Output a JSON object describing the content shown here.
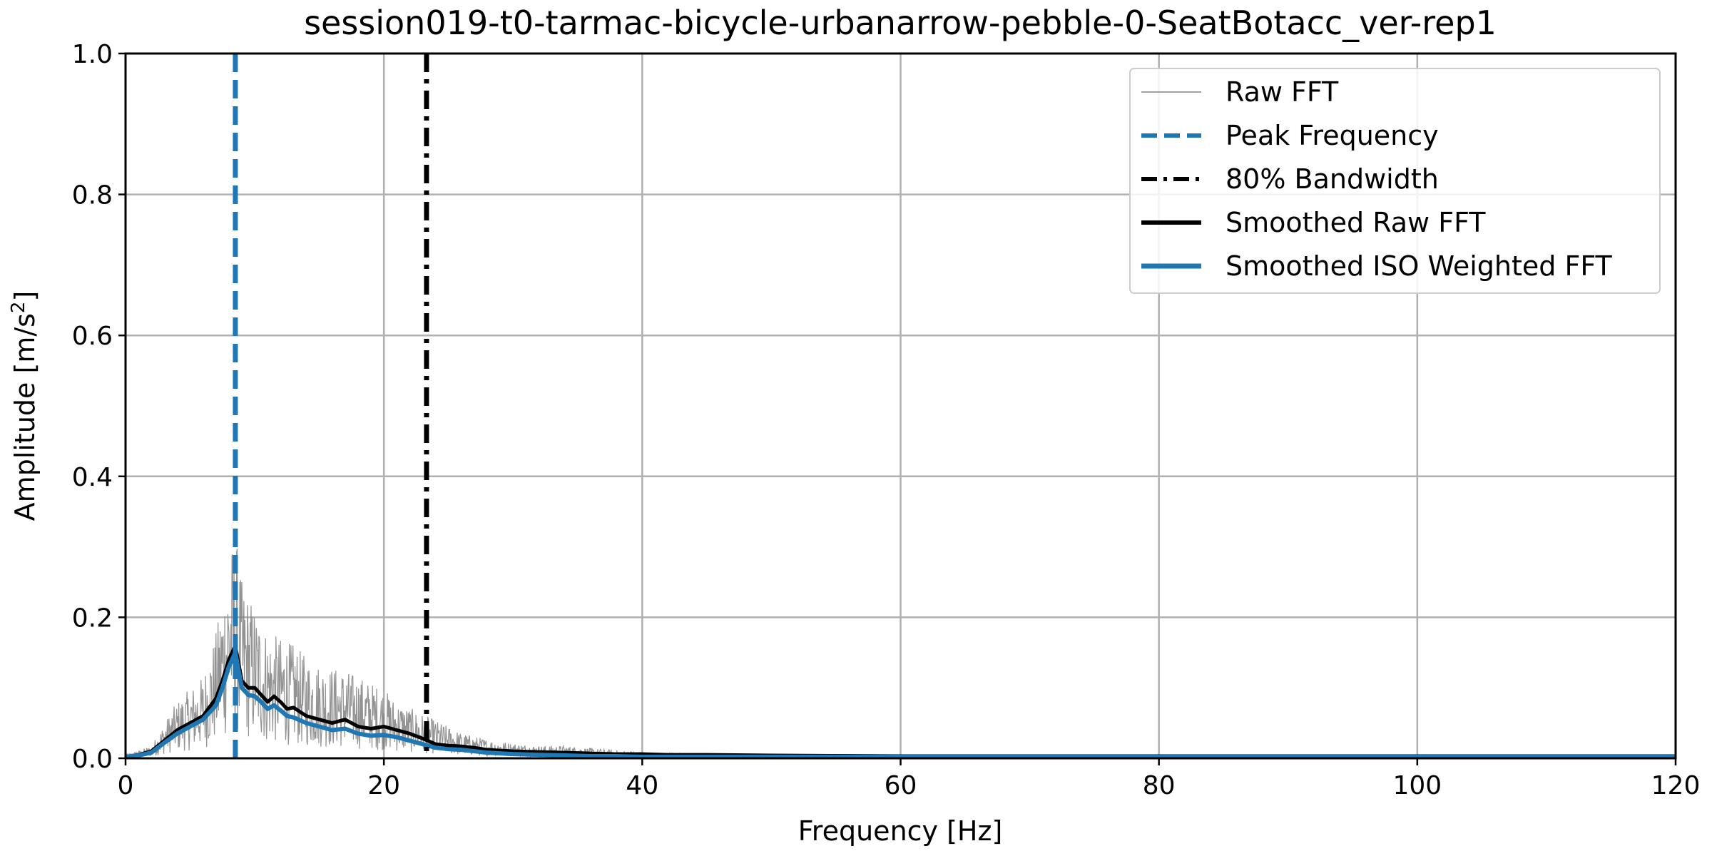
{
  "chart_data": {
    "type": "line",
    "title": "session019-t0-tarmac-bicycle-urbanarrow-pebble-0-SeatBotacc_ver-rep1",
    "xlabel": "Frequency [Hz]",
    "ylabel": "Amplitude [m/s²]",
    "ylabel_main": "Amplitude [m/s",
    "ylabel_sup": "2",
    "ylabel_end": "]",
    "xlim": [
      0,
      120
    ],
    "ylim": [
      0,
      1.0
    ],
    "x_ticks": [
      0,
      20,
      40,
      60,
      80,
      100,
      120
    ],
    "y_ticks": [
      0.0,
      0.2,
      0.4,
      0.6,
      0.8,
      1.0
    ],
    "x_tick_labels": [
      "0",
      "20",
      "40",
      "60",
      "80",
      "100",
      "120"
    ],
    "y_tick_labels": [
      "0.0",
      "0.2",
      "0.4",
      "0.6",
      "0.8",
      "1.0"
    ],
    "grid": true,
    "legend_position": "top-right",
    "series": [
      {
        "name": "Raw FFT",
        "color": "#808080",
        "style": "thin-noisy",
        "x": [
          0,
          1,
          2,
          3,
          4,
          5,
          6,
          7,
          7.5,
          8,
          8.5,
          9,
          10,
          11,
          12,
          13,
          14,
          15,
          16,
          17,
          18,
          19,
          20,
          21,
          22,
          23,
          24,
          25,
          26,
          28,
          30,
          32,
          34,
          36,
          40,
          45,
          50,
          60,
          80,
          100,
          120
        ],
        "values": [
          0.003,
          0.006,
          0.01,
          0.028,
          0.045,
          0.055,
          0.065,
          0.1,
          0.13,
          0.16,
          0.18,
          0.14,
          0.12,
          0.1,
          0.095,
          0.09,
          0.08,
          0.075,
          0.072,
          0.07,
          0.065,
          0.06,
          0.055,
          0.045,
          0.04,
          0.035,
          0.03,
          0.025,
          0.02,
          0.015,
          0.012,
          0.01,
          0.01,
          0.008,
          0.005,
          0.004,
          0.003,
          0.002,
          0.002,
          0.001,
          0.001
        ]
      },
      {
        "name": "Peak Frequency",
        "color": "#1f77b4",
        "style": "vertical-dashed",
        "x_value": 8.5
      },
      {
        "name": "80% Bandwidth",
        "color": "#000000",
        "style": "vertical-dashdot",
        "x_value": 23.3
      },
      {
        "name": "Smoothed Raw FFT",
        "color": "#000000",
        "style": "solid",
        "x": [
          0,
          1,
          2,
          3,
          4,
          5,
          6,
          7,
          7.5,
          8,
          8.5,
          9,
          9.5,
          10,
          10.5,
          11,
          11.5,
          12,
          12.5,
          13,
          14,
          15,
          16,
          17,
          18,
          19,
          20,
          21,
          22,
          23,
          24,
          25,
          26,
          27,
          28,
          30,
          32,
          34,
          36,
          38,
          40,
          42,
          45,
          50,
          60,
          80,
          100,
          120
        ],
        "values": [
          0.002,
          0.005,
          0.01,
          0.025,
          0.04,
          0.05,
          0.06,
          0.085,
          0.11,
          0.14,
          0.16,
          0.11,
          0.1,
          0.1,
          0.09,
          0.08,
          0.088,
          0.08,
          0.07,
          0.072,
          0.06,
          0.055,
          0.05,
          0.055,
          0.045,
          0.042,
          0.045,
          0.04,
          0.035,
          0.028,
          0.02,
          0.018,
          0.017,
          0.015,
          0.012,
          0.01,
          0.009,
          0.008,
          0.007,
          0.006,
          0.006,
          0.005,
          0.005,
          0.004,
          0.003,
          0.003,
          0.003,
          0.003
        ]
      },
      {
        "name": "Smoothed ISO Weighted FFT",
        "color": "#1f77b4",
        "style": "solid-thick",
        "x": [
          0,
          1,
          2,
          3,
          4,
          5,
          6,
          7,
          7.5,
          8,
          8.5,
          9,
          9.5,
          10,
          10.5,
          11,
          11.5,
          12,
          12.5,
          13,
          14,
          15,
          16,
          17,
          18,
          19,
          20,
          21,
          22,
          23,
          24,
          25,
          26,
          27,
          28,
          30,
          32,
          34,
          36,
          38,
          40,
          42,
          45,
          50,
          60,
          80,
          100,
          120
        ],
        "values": [
          0.002,
          0.004,
          0.008,
          0.022,
          0.035,
          0.045,
          0.055,
          0.075,
          0.1,
          0.13,
          0.15,
          0.1,
          0.09,
          0.088,
          0.08,
          0.07,
          0.075,
          0.068,
          0.06,
          0.058,
          0.05,
          0.045,
          0.04,
          0.042,
          0.035,
          0.032,
          0.033,
          0.03,
          0.025,
          0.02,
          0.015,
          0.013,
          0.012,
          0.01,
          0.008,
          0.006,
          0.005,
          0.004,
          0.003,
          0.003,
          0.002,
          0.002,
          0.002,
          0.002,
          0.002,
          0.002,
          0.002,
          0.002
        ]
      }
    ]
  }
}
